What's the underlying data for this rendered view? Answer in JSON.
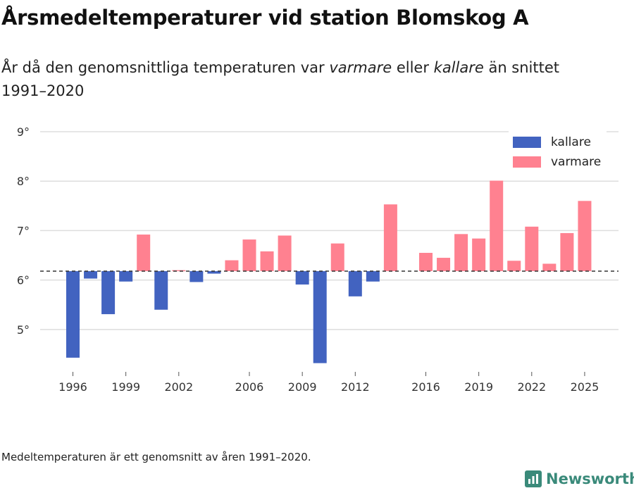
{
  "title": "Årsmedeltemperaturer vid station Blomskog A",
  "subtitle": {
    "part1": "År då den genomsnittliga temperaturen var ",
    "warm_word": "varmare",
    "part2": " eller ",
    "cold_word": "kallare",
    "part3": " än snittet 1991–2020"
  },
  "footnote": "Medeltemperaturen är ett genomsnitt av åren 1991–2020.",
  "brand": "Newsworthy",
  "legend": {
    "cold_label": "kallare",
    "warm_label": "varmare"
  },
  "colors": {
    "cold": "#4263c0",
    "warm": "#ff8190",
    "grid": "#dddddd",
    "baseline": "#333333",
    "brand": "#3a8a7a"
  },
  "chart_data": {
    "type": "bar",
    "title": "Årsmedeltemperaturer vid station Blomskog A",
    "xlabel": "",
    "ylabel": "",
    "baseline": 6.18,
    "ylim": [
      4.3,
      9.0
    ],
    "yticks": [
      5,
      6,
      7,
      8,
      9
    ],
    "ytick_labels": [
      "5°",
      "6°",
      "7°",
      "8°",
      "9°"
    ],
    "xticks": [
      1996,
      1999,
      2002,
      2006,
      2009,
      2012,
      2016,
      2019,
      2022,
      2025
    ],
    "series": [
      {
        "name": "kallare",
        "color": "#4263c0"
      },
      {
        "name": "varmare",
        "color": "#ff8190"
      }
    ],
    "years": [
      1996,
      1997,
      1998,
      1999,
      2000,
      2001,
      2002,
      2003,
      2004,
      2005,
      2006,
      2007,
      2008,
      2009,
      2010,
      2011,
      2012,
      2013,
      2014,
      2015,
      2016,
      2017,
      2018,
      2019,
      2020,
      2021,
      2022,
      2023,
      2024,
      2025
    ],
    "values": [
      4.43,
      6.03,
      5.31,
      5.97,
      6.92,
      5.4,
      6.2,
      5.96,
      6.13,
      6.4,
      6.82,
      6.58,
      6.9,
      5.91,
      4.32,
      6.74,
      5.67,
      5.97,
      7.53,
      null,
      6.55,
      6.45,
      6.93,
      6.84,
      8.01,
      6.39,
      7.08,
      6.33,
      6.95,
      7.6
    ]
  }
}
